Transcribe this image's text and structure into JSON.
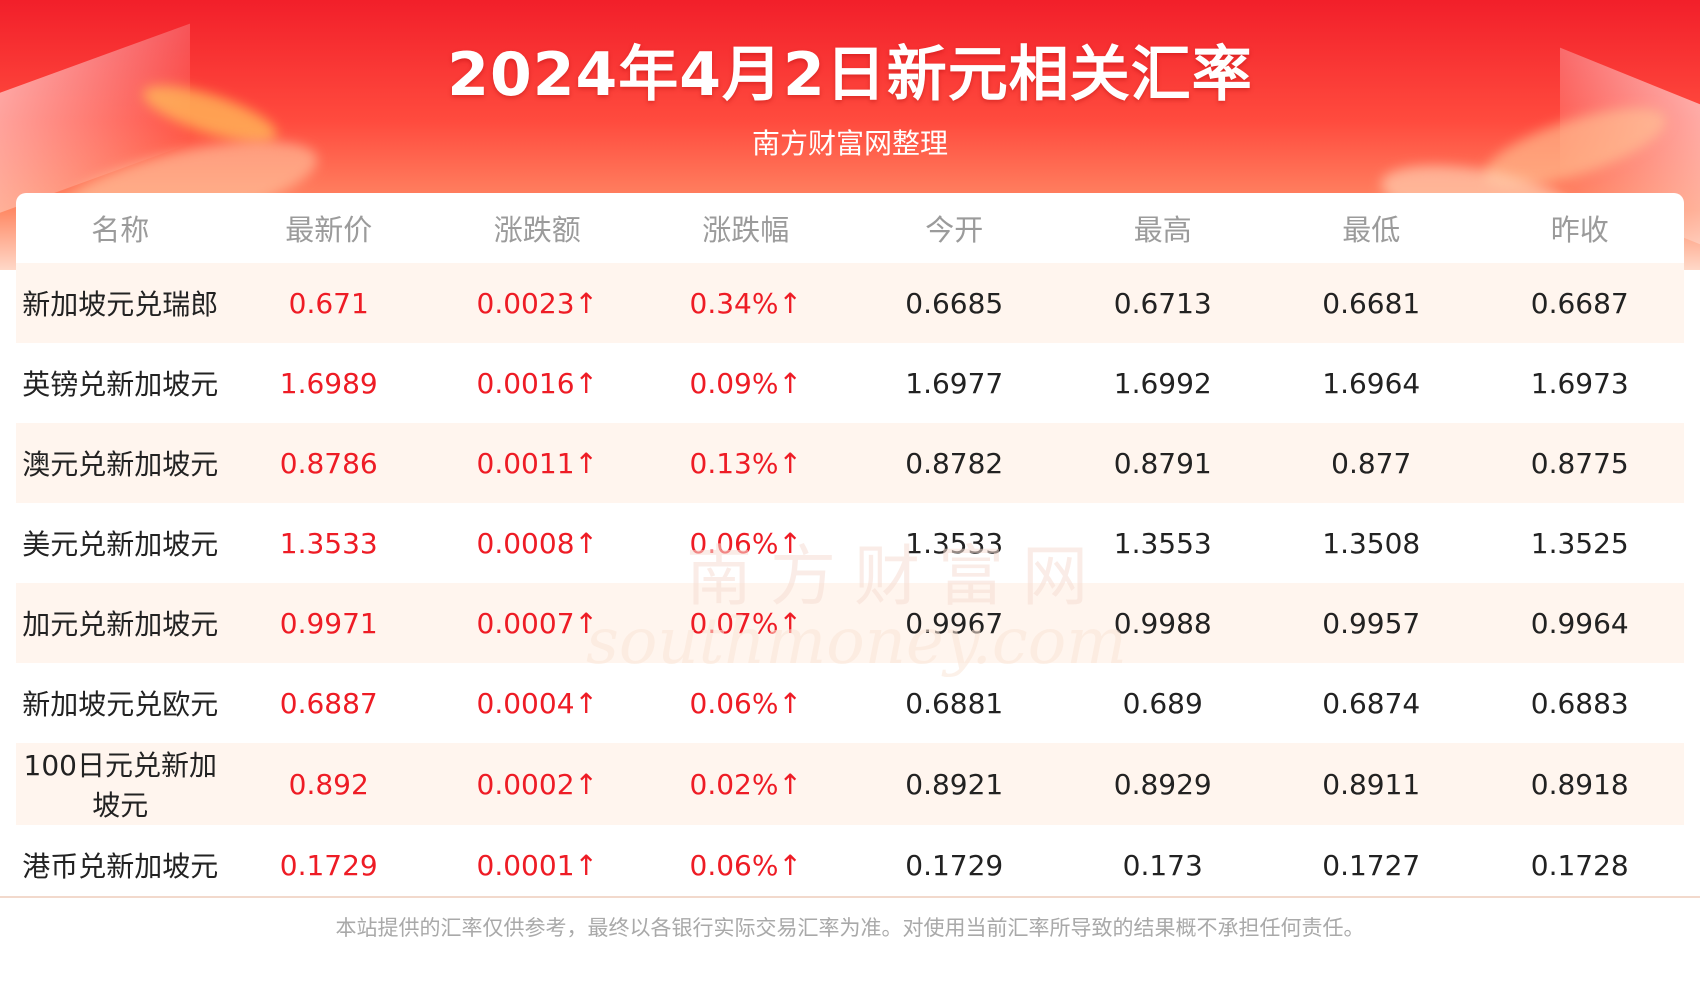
{
  "title": "2024年4月2日新元相关汇率",
  "subtitle": "南方财富网整理",
  "watermark": {
    "cn": "南方财富网",
    "en": "southmoney.com"
  },
  "columns": [
    "名称",
    "最新价",
    "涨跌额",
    "涨跌幅",
    "今开",
    "最高",
    "最低",
    "昨收"
  ],
  "rows": [
    {
      "name": "新加坡元兑瑞郎",
      "latest": "0.671",
      "change": "0.0023↑",
      "pct": "0.34%↑",
      "open": "0.6685",
      "high": "0.6713",
      "low": "0.6681",
      "prev": "0.6687"
    },
    {
      "name": "英镑兑新加坡元",
      "latest": "1.6989",
      "change": "0.0016↑",
      "pct": "0.09%↑",
      "open": "1.6977",
      "high": "1.6992",
      "low": "1.6964",
      "prev": "1.6973"
    },
    {
      "name": "澳元兑新加坡元",
      "latest": "0.8786",
      "change": "0.0011↑",
      "pct": "0.13%↑",
      "open": "0.8782",
      "high": "0.8791",
      "low": "0.877",
      "prev": "0.8775"
    },
    {
      "name": "美元兑新加坡元",
      "latest": "1.3533",
      "change": "0.0008↑",
      "pct": "0.06%↑",
      "open": "1.3533",
      "high": "1.3553",
      "low": "1.3508",
      "prev": "1.3525"
    },
    {
      "name": "加元兑新加坡元",
      "latest": "0.9971",
      "change": "0.0007↑",
      "pct": "0.07%↑",
      "open": "0.9967",
      "high": "0.9988",
      "low": "0.9957",
      "prev": "0.9964"
    },
    {
      "name": "新加坡元兑欧元",
      "latest": "0.6887",
      "change": "0.0004↑",
      "pct": "0.06%↑",
      "open": "0.6881",
      "high": "0.689",
      "low": "0.6874",
      "prev": "0.6883"
    },
    {
      "name": "100日元兑新加坡元",
      "latest": "0.892",
      "change": "0.0002↑",
      "pct": "0.02%↑",
      "open": "0.8921",
      "high": "0.8929",
      "low": "0.8911",
      "prev": "0.8918"
    },
    {
      "name": "港币兑新加坡元",
      "latest": "0.1729",
      "change": "0.0001↑",
      "pct": "0.06%↑",
      "open": "0.1729",
      "high": "0.173",
      "low": "0.1727",
      "prev": "0.1728"
    }
  ],
  "footer": "本站提供的汇率仅供参考，最终以各银行实际交易汇率为准。对使用当前汇率所导致的结果概不承担任何责任。",
  "colors": {
    "accent_red": "#ee1c25",
    "banner_red": "#f21f2a",
    "row_tint": "#fff4ec"
  }
}
